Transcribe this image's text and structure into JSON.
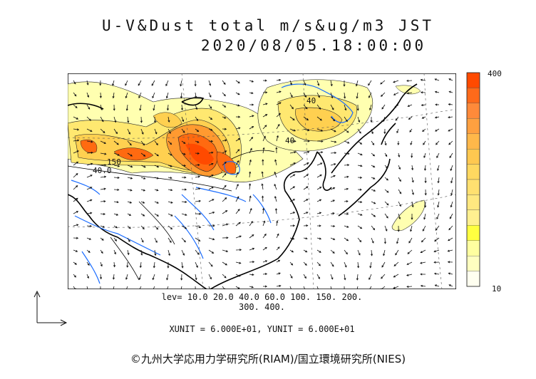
{
  "header": {
    "title": "U-V&Dust total m/s&ug/m3 JST",
    "datetime": "2020/08/05.18:00:00"
  },
  "colorbar": {
    "max_label": "400",
    "min_label": "10",
    "colors": [
      "#ff4a00",
      "#ff6a1a",
      "#ff8a3a",
      "#ffa040",
      "#ffb84a",
      "#ffc850",
      "#ffd860",
      "#ffe070",
      "#ffe880",
      "#fff090",
      "#ffff40",
      "#ffffa0",
      "#ffffc0",
      "#fffff0"
    ]
  },
  "levels": {
    "line1": "lev= 10.0 20.0 40.0 60.0 100. 150. 200.",
    "line2": "300. 400."
  },
  "units_text": "XUNIT = 6.000E+01, YUNIT = 6.000E+01",
  "copyright": "©九州大学応用力学研究所(RIAM)/国立環境研究所(NIES)",
  "contour_labels": [
    "150",
    "40.0",
    "40",
    "40"
  ],
  "map_colors": {
    "coast": "#000000",
    "river": "#1a6cff",
    "dust_low": "#ffffb0",
    "dust_mid": "#ffd850",
    "dust_high": "#ff6a10",
    "dust_peak": "#ff4000"
  }
}
